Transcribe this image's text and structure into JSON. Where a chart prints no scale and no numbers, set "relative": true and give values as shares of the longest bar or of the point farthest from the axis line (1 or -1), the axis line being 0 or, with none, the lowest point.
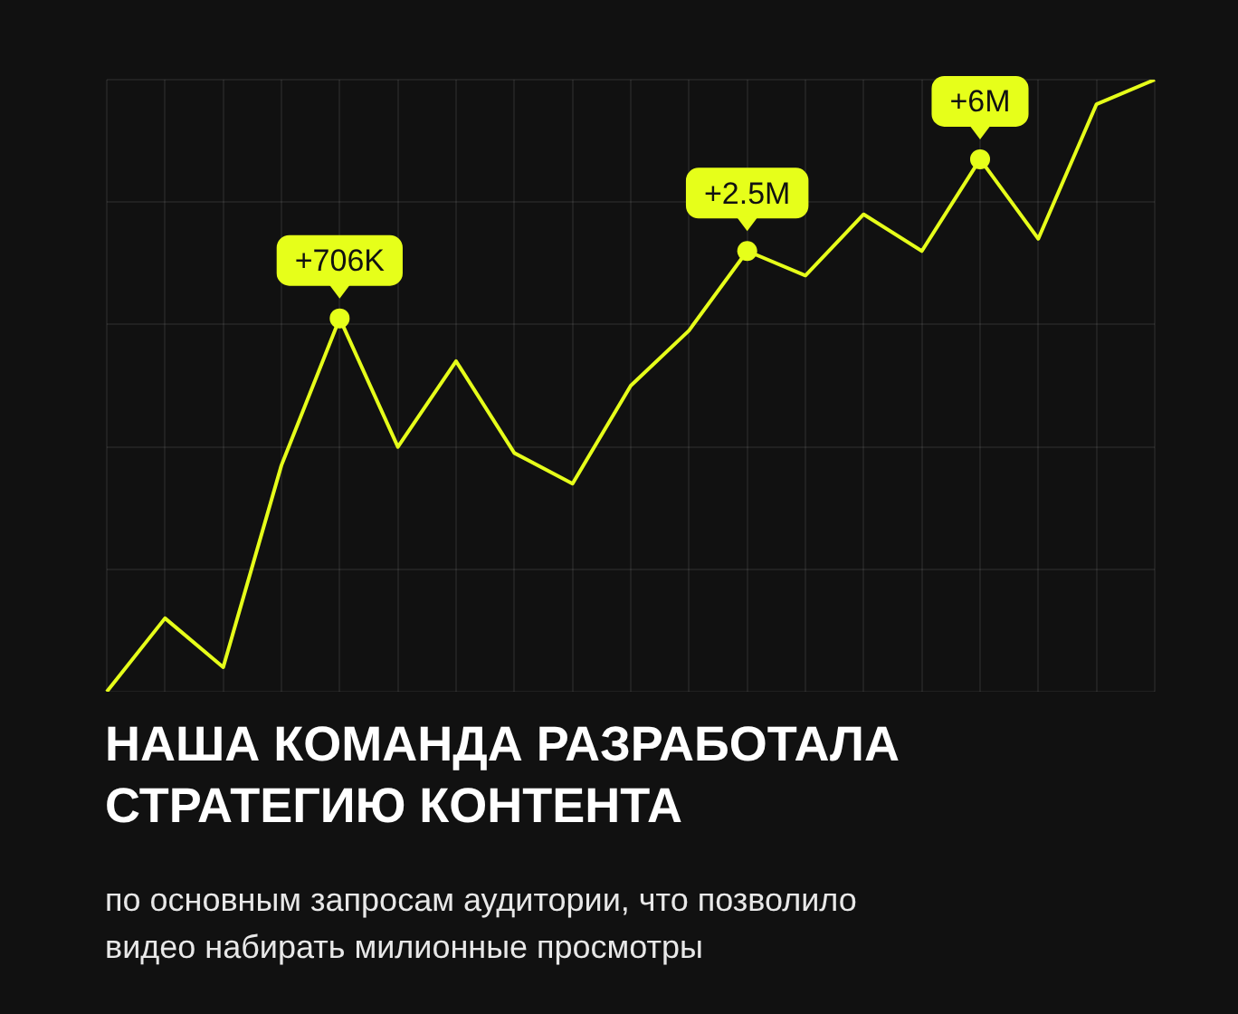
{
  "chart_data": {
    "type": "line",
    "relative": true,
    "grid": true,
    "title": "НАША КОМАНДА РАЗРАБОТАЛА СТРАТЕГИЮ КОНТЕНТА",
    "subtitle": "по основным запросам аудитории, что позволило видео набирать милионные просмотры",
    "annotations": [
      {
        "text": "+706K",
        "y": 0.61
      },
      {
        "text": "+2.5M",
        "y": 0.72
      },
      {
        "text": "+6M",
        "y": 0.87
      }
    ],
    "categories": [
      null,
      null,
      null,
      null,
      null,
      null,
      null,
      null,
      null,
      null,
      null,
      null,
      null,
      null,
      null,
      null,
      null,
      null,
      null
    ],
    "series": [
      {
        "color": "#e6ff1a",
        "marker": "none",
        "line_style": "solid",
        "values": [
          0,
          0.12,
          0.04,
          0.37,
          0.61,
          0.4,
          0.54,
          0.39,
          0.34,
          0.5,
          0.59,
          0.72,
          0.68,
          0.78,
          0.72,
          0.87,
          0.74,
          0.96,
          1
        ]
      }
    ]
  }
}
